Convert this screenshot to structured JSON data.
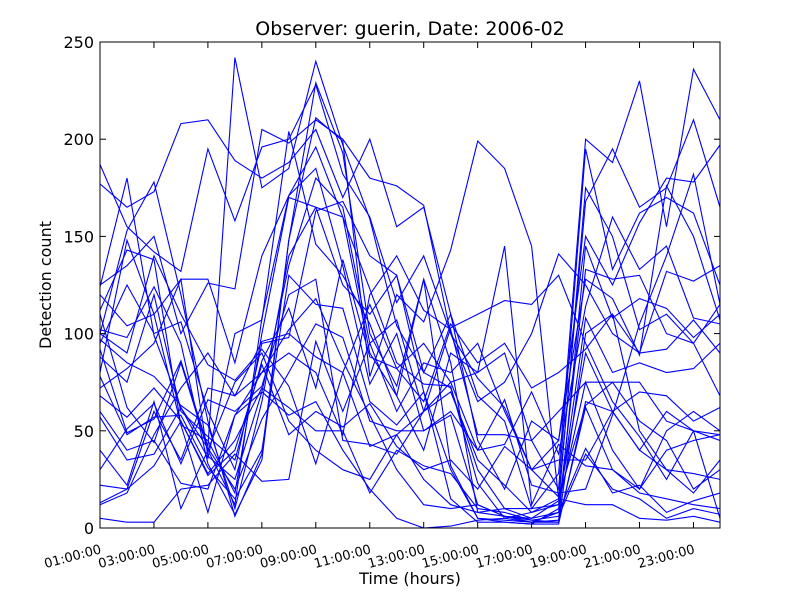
{
  "chart_data": {
    "type": "line",
    "title": "Observer: guerin, Date: 2006-02",
    "xlabel": "Time (hours)",
    "ylabel": "Detection count",
    "x": [
      "01:00:00",
      "02:00:00",
      "03:00:00",
      "04:00:00",
      "05:00:00",
      "06:00:00",
      "07:00:00",
      "08:00:00",
      "09:00:00",
      "10:00:00",
      "11:00:00",
      "12:00:00",
      "13:00:00",
      "14:00:00",
      "15:00:00",
      "16:00:00",
      "17:00:00",
      "18:00:00",
      "19:00:00",
      "20:00:00",
      "21:00:00",
      "22:00:00",
      "23:00:00",
      "23:59:00"
    ],
    "xticks": [
      "01:00:00",
      "03:00:00",
      "05:00:00",
      "07:00:00",
      "09:00:00",
      "11:00:00",
      "13:00:00",
      "15:00:00",
      "17:00:00",
      "19:00:00",
      "21:00:00",
      "23:00:00"
    ],
    "yticks": [
      0,
      50,
      100,
      150,
      200,
      250
    ],
    "ylim": [
      0,
      250
    ],
    "line_color": "#0000ff",
    "grid": false,
    "series": [
      {
        "values": [
          187,
          155,
          142,
          132,
          195,
          158,
          196,
          200,
          228,
          182,
          160,
          116,
          140,
          100,
          77,
          62,
          30,
          45,
          150,
          125,
          157,
          180,
          178,
          197
        ]
      },
      {
        "values": [
          177,
          165,
          173,
          208,
          210,
          189,
          180,
          188,
          205,
          170,
          200,
          155,
          165,
          110,
          68,
          55,
          10,
          28,
          200,
          188,
          230,
          155,
          236,
          210
        ]
      },
      {
        "values": [
          125,
          135,
          150,
          100,
          126,
          123,
          205,
          198,
          210,
          200,
          180,
          176,
          166,
          100,
          65,
          75,
          100,
          141,
          125,
          100,
          90,
          92,
          107,
          90
        ]
      },
      {
        "values": [
          120,
          104,
          110,
          53,
          45,
          18,
          100,
          170,
          165,
          125,
          110,
          130,
          80,
          110,
          45,
          20,
          55,
          45,
          128,
          118,
          89,
          176,
          150,
          107
        ]
      },
      {
        "values": [
          100,
          153,
          178,
          120,
          55,
          6,
          38,
          148,
          229,
          193,
          100,
          73,
          128,
          32,
          5,
          4,
          3,
          4,
          145,
          108,
          118,
          113,
          98,
          110
        ]
      },
      {
        "values": [
          97,
          85,
          78,
          63,
          53,
          10,
          65,
          140,
          165,
          160,
          90,
          68,
          128,
          85,
          8,
          10,
          5,
          8,
          133,
          128,
          130,
          100,
          95,
          115
        ]
      },
      {
        "values": [
          78,
          48,
          57,
          58,
          31,
          15,
          40,
          130,
          115,
          113,
          65,
          53,
          70,
          30,
          5,
          3,
          2,
          10,
          108,
          80,
          85,
          80,
          82,
          95
        ]
      },
      {
        "values": [
          57,
          35,
          38,
          62,
          41,
          20,
          56,
          80,
          105,
          98,
          55,
          50,
          50,
          58,
          12,
          6,
          5,
          14,
          90,
          60,
          70,
          68,
          55,
          62
        ]
      },
      {
        "values": [
          40,
          22,
          65,
          10,
          40,
          75,
          90,
          55,
          40,
          30,
          25,
          48,
          60,
          70,
          35,
          22,
          8,
          12,
          75,
          40,
          20,
          50,
          60,
          50
        ]
      },
      {
        "values": [
          22,
          20,
          32,
          55,
          28,
          45,
          72,
          62,
          50,
          50,
          18,
          40,
          32,
          28,
          10,
          8,
          4,
          3,
          62,
          30,
          20,
          40,
          45,
          48
        ]
      },
      {
        "values": [
          13,
          20,
          60,
          35,
          72,
          68,
          96,
          100,
          88,
          80,
          42,
          48,
          25,
          12,
          8,
          6,
          3,
          8,
          41,
          18,
          22,
          8,
          14,
          18
        ]
      },
      {
        "values": [
          5,
          3,
          3,
          20,
          22,
          38,
          24,
          25,
          96,
          60,
          95,
          60,
          85,
          80,
          95,
          60,
          30,
          35,
          35,
          60,
          40,
          60,
          50,
          5
        ]
      },
      {
        "values": [
          112,
          143,
          138,
          53,
          8,
          58,
          80,
          90,
          80,
          48,
          120,
          140,
          112,
          102,
          48,
          48,
          45,
          60,
          75,
          75,
          75,
          55,
          50,
          45
        ]
      },
      {
        "values": [
          124,
          180,
          99,
          62,
          36,
          100,
          107,
          204,
          146,
          130,
          105,
          68,
          40,
          90,
          80,
          90,
          45,
          20,
          195,
          133,
          162,
          170,
          162,
          125
        ]
      },
      {
        "values": [
          95,
          125,
          100,
          106,
          60,
          30,
          95,
          98,
          163,
          168,
          140,
          130,
          70,
          15,
          3,
          3,
          2,
          2,
          65,
          60,
          40,
          30,
          28,
          25
        ]
      },
      {
        "values": [
          88,
          75,
          120,
          60,
          47,
          35,
          86,
          113,
          72,
          138,
          88,
          82,
          95,
          75,
          80,
          145,
          12,
          43,
          32,
          30,
          18,
          15,
          12,
          10
        ]
      },
      {
        "values": [
          110,
          62,
          44,
          85,
          40,
          12,
          108,
          171,
          185,
          135,
          74,
          100,
          50,
          60,
          40,
          66,
          22,
          18,
          20,
          58,
          105,
          140,
          182,
          115
        ]
      },
      {
        "values": [
          102,
          98,
          124,
          95,
          33,
          7,
          35,
          148,
          211,
          199,
          78,
          120,
          106,
          143,
          199,
          185,
          145,
          15,
          168,
          195,
          165,
          175,
          210,
          165
        ]
      },
      {
        "values": [
          80,
          148,
          110,
          128,
          37,
          25,
          70,
          135,
          180,
          165,
          95,
          107,
          60,
          75,
          40,
          43,
          70,
          38,
          114,
          160,
          133,
          145,
          108,
          105
        ]
      },
      {
        "values": [
          68,
          57,
          72,
          55,
          27,
          40,
          84,
          48,
          60,
          52,
          64,
          42,
          30,
          35,
          20,
          42,
          30,
          16,
          63,
          75,
          55,
          45,
          20,
          30
        ]
      },
      {
        "values": [
          100,
          90,
          140,
          110,
          84,
          76,
          92,
          73,
          33,
          80,
          115,
          82,
          65,
          105,
          85,
          95,
          72,
          80,
          92,
          110,
          90,
          132,
          127,
          135
        ]
      },
      {
        "values": [
          30,
          51,
          64,
          33,
          66,
          60,
          73,
          120,
          128,
          45,
          43,
          38,
          60,
          103,
          110,
          117,
          115,
          130,
          95,
          65,
          47,
          25,
          50,
          48
        ]
      },
      {
        "values": [
          60,
          40,
          45,
          23,
          20,
          58,
          70,
          58,
          65,
          40,
          20,
          5,
          0,
          1,
          4,
          5,
          8,
          15,
          12,
          12,
          5,
          4,
          6,
          3
        ]
      },
      {
        "values": [
          12,
          18,
          48,
          72,
          90,
          68,
          80,
          102,
          118,
          86,
          58,
          30,
          12,
          10,
          12,
          6,
          4,
          6,
          38,
          20,
          15,
          5,
          10,
          7
        ]
      },
      {
        "values": [
          72,
          82,
          95,
          128,
          128,
          85,
          140,
          171,
          196,
          160,
          123,
          85,
          74,
          73,
          23,
          5,
          3,
          3,
          100,
          110,
          50,
          30,
          18,
          35
        ]
      },
      {
        "values": [
          92,
          49,
          56,
          86,
          42,
          242,
          175,
          185,
          240,
          197,
          159,
          104,
          80,
          72,
          30,
          10,
          10,
          12,
          175,
          150,
          102,
          110,
          95,
          68
        ]
      }
    ]
  }
}
